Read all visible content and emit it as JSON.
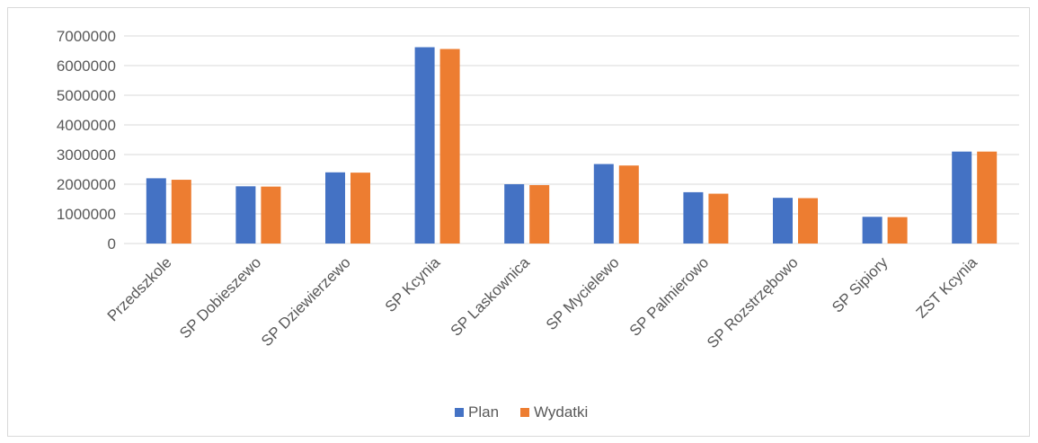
{
  "chart_data": {
    "type": "bar",
    "categories": [
      "Przedszkole",
      "SP Dobieszewo",
      "SP Dziewierzewo",
      "SP Kcynia",
      "SP Laskownica",
      "SP Mycielewo",
      "SP Palmierowo",
      "SP Rozstrzębowo",
      "SP Sipiory",
      "ZST Kcynia"
    ],
    "series": [
      {
        "name": "Plan",
        "color": "#4472c4",
        "values": [
          2200000,
          1930000,
          2400000,
          6620000,
          2000000,
          2680000,
          1730000,
          1540000,
          900000,
          3100000
        ]
      },
      {
        "name": "Wydatki",
        "color": "#ed7d31",
        "values": [
          2150000,
          1920000,
          2390000,
          6560000,
          1970000,
          2630000,
          1680000,
          1530000,
          890000,
          3100000
        ]
      }
    ],
    "yticks": [
      "0",
      "1000000",
      "2000000",
      "3000000",
      "4000000",
      "5000000",
      "6000000",
      "7000000"
    ],
    "ylim": [
      0,
      7000000
    ],
    "grid": true,
    "legend_position": "bottom",
    "gridline_color": "#d9d9d9"
  }
}
